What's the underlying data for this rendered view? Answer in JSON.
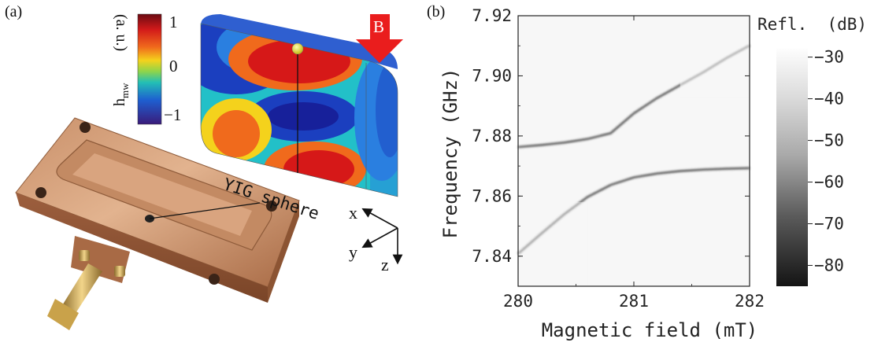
{
  "panel_a": {
    "label": "(a)",
    "colorbar": {
      "quantity": "h",
      "quantity_sub": "mw",
      "unit": "(a. u.)",
      "ticks": [
        "1",
        "0",
        "−1"
      ]
    },
    "field_label": "B",
    "sphere_label": "YIG sphere",
    "axes": {
      "x": "x",
      "y": "y",
      "z": "z"
    }
  },
  "panel_b": {
    "label": "(b)",
    "colorbar": {
      "title": "Refl.  (dB)",
      "ticks": [
        "−30",
        "−40",
        "−50",
        "−60",
        "−70",
        "−80"
      ],
      "range": [
        -85,
        -28
      ]
    }
  },
  "chart_data": {
    "type": "heatmap",
    "title": "",
    "xlabel": "Magnetic field (mT)",
    "ylabel": "Frequency (GHz)",
    "xlim": [
      280,
      282
    ],
    "ylim": [
      7.83,
      7.92
    ],
    "x_ticks": [
      "280",
      "281",
      "282"
    ],
    "y_ticks": [
      "7.84",
      "7.86",
      "7.88",
      "7.90",
      "7.92"
    ],
    "colorbar_label": "Refl. (dB)",
    "colorbar_range": [
      -85,
      -28
    ],
    "background_level_db": -30,
    "cavity_frequency_ghz": 7.877,
    "kittel_slope_ghz_per_mt": 0.028,
    "magnon_cavity_crossing_mt": 281.0,
    "coupling_g_ghz": 0.0105,
    "upper_branch": {
      "x": [
        280.0,
        280.2,
        280.4,
        280.6,
        280.8,
        281.0,
        281.2,
        281.4,
        281.6,
        281.8,
        282.0
      ],
      "y": [
        7.8763,
        7.877,
        7.8778,
        7.879,
        7.8809,
        7.8875,
        7.8926,
        7.8969,
        7.9012,
        7.9059,
        7.9101
      ]
    },
    "lower_branch": {
      "x": [
        280.0,
        280.2,
        280.4,
        280.6,
        280.8,
        281.0,
        281.2,
        281.4,
        281.6,
        281.8,
        282.0
      ],
      "y": [
        7.8408,
        7.8475,
        7.854,
        7.8597,
        7.8637,
        7.8662,
        7.8675,
        7.8683,
        7.8688,
        7.8691,
        7.8693
      ]
    }
  }
}
